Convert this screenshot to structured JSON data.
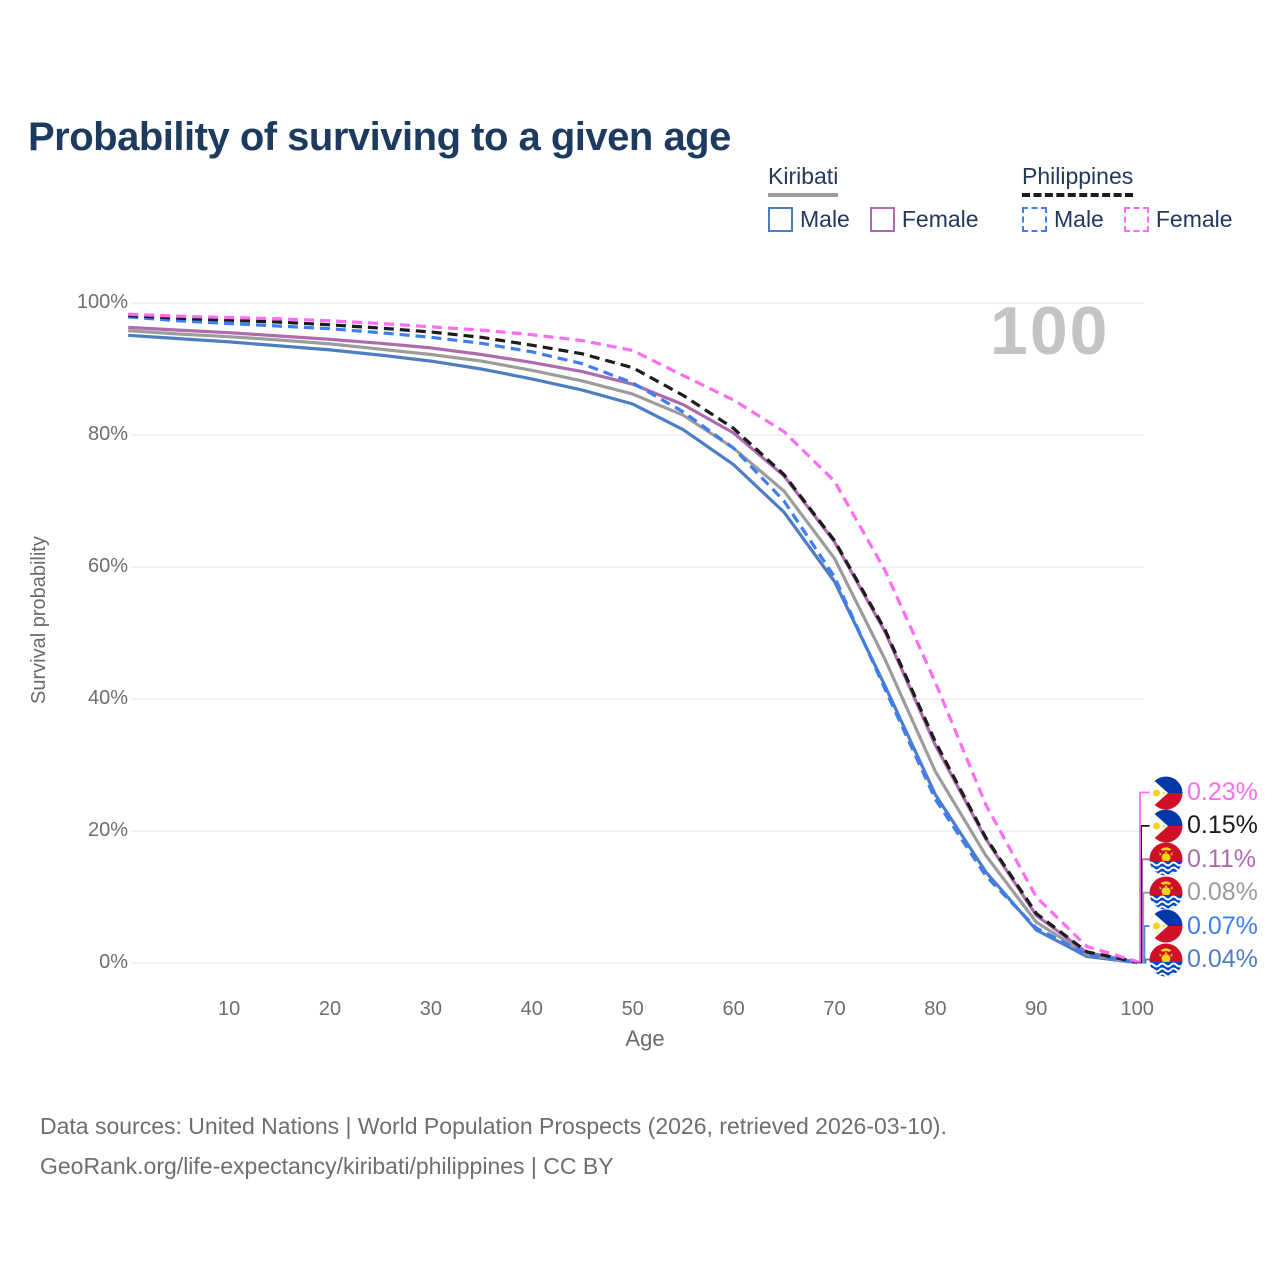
{
  "title": "Probability of surviving to a given age",
  "watermark": "100",
  "legend": {
    "groups": [
      {
        "label": "Kiribati",
        "line_style": "solid",
        "underline_color": "#9e9e9e",
        "items": [
          {
            "label": "Male",
            "color": "#4d7ec2",
            "dash": false
          },
          {
            "label": "Female",
            "color": "#ad6bae",
            "dash": false
          }
        ]
      },
      {
        "label": "Philippines",
        "line_style": "dashed",
        "underline_color": "#1c1c1c",
        "items": [
          {
            "label": "Male",
            "color": "#3e7ef2",
            "dash": true
          },
          {
            "label": "Female",
            "color": "#fb6df1",
            "dash": true
          }
        ]
      }
    ]
  },
  "chart_data": {
    "type": "line",
    "title": "Probability of surviving to a given age",
    "xlabel": "Age",
    "ylabel": "Survival probability",
    "xlim": [
      0,
      100
    ],
    "ylim": [
      0,
      100
    ],
    "grid": "horizontal",
    "x_ticks": [
      10,
      20,
      30,
      40,
      50,
      60,
      70,
      80,
      90,
      100
    ],
    "y_ticks": [
      {
        "label": "100%",
        "value": 100
      },
      {
        "label": "80%",
        "value": 80
      },
      {
        "label": "60%",
        "value": 60
      },
      {
        "label": "40%",
        "value": 40
      },
      {
        "label": "20%",
        "value": 20
      },
      {
        "label": "0%",
        "value": 0
      }
    ],
    "series": [
      {
        "id": "kiribati-male",
        "name": "Kiribati Male",
        "country": "Kiribati",
        "sex": "male",
        "color": "#4d7ec2",
        "dash": false,
        "end_label": "0.04%",
        "label_row": 5,
        "points": [
          [
            0,
            95.1
          ],
          [
            5,
            94.6
          ],
          [
            10,
            94.1
          ],
          [
            15,
            93.5
          ],
          [
            20,
            92.9
          ],
          [
            25,
            92.1
          ],
          [
            30,
            91.2
          ],
          [
            35,
            90.0
          ],
          [
            40,
            88.5
          ],
          [
            45,
            86.8
          ],
          [
            50,
            84.7
          ],
          [
            55,
            80.8
          ],
          [
            60,
            75.5
          ],
          [
            65,
            68.3
          ],
          [
            70,
            57.8
          ],
          [
            75,
            42.0
          ],
          [
            80,
            25.5
          ],
          [
            85,
            13.8
          ],
          [
            90,
            5.0
          ],
          [
            95,
            1.0
          ],
          [
            100,
            0.04
          ]
        ]
      },
      {
        "id": "kiribati-both",
        "name": "Kiribati",
        "country": "Kiribati",
        "sex": "both",
        "color": "#9c9c9c",
        "dash": false,
        "end_label": "0.08%",
        "label_row": 3,
        "points": [
          [
            0,
            95.8
          ],
          [
            5,
            95.3
          ],
          [
            10,
            94.9
          ],
          [
            15,
            94.4
          ],
          [
            20,
            93.8
          ],
          [
            25,
            93.0
          ],
          [
            30,
            92.2
          ],
          [
            35,
            91.2
          ],
          [
            40,
            89.8
          ],
          [
            45,
            88.2
          ],
          [
            50,
            86.2
          ],
          [
            55,
            83.0
          ],
          [
            60,
            78.0
          ],
          [
            65,
            71.5
          ],
          [
            70,
            61.3
          ],
          [
            75,
            46.0
          ],
          [
            80,
            29.0
          ],
          [
            85,
            16.3
          ],
          [
            90,
            6.2
          ],
          [
            95,
            1.3
          ],
          [
            100,
            0.08
          ]
        ]
      },
      {
        "id": "kiribati-female",
        "name": "Kiribati Female",
        "country": "Kiribati",
        "sex": "female",
        "color": "#ad6bae",
        "dash": false,
        "end_label": "0.11%",
        "label_row": 2,
        "points": [
          [
            0,
            96.3
          ],
          [
            5,
            95.9
          ],
          [
            10,
            95.5
          ],
          [
            15,
            95.0
          ],
          [
            20,
            94.5
          ],
          [
            25,
            93.9
          ],
          [
            30,
            93.2
          ],
          [
            35,
            92.2
          ],
          [
            40,
            91.0
          ],
          [
            45,
            89.6
          ],
          [
            50,
            87.7
          ],
          [
            55,
            84.6
          ],
          [
            60,
            80.3
          ],
          [
            65,
            73.8
          ],
          [
            70,
            63.8
          ],
          [
            75,
            50.2
          ],
          [
            80,
            33.0
          ],
          [
            85,
            18.8
          ],
          [
            90,
            7.2
          ],
          [
            95,
            1.6
          ],
          [
            100,
            0.11
          ]
        ]
      },
      {
        "id": "philippines-male",
        "name": "Philippines Male",
        "country": "Philippines",
        "sex": "male",
        "color": "#3e7ef2",
        "dash": true,
        "end_label": "0.07%",
        "label_row": 4,
        "points": [
          [
            0,
            97.9
          ],
          [
            5,
            97.3
          ],
          [
            10,
            96.9
          ],
          [
            15,
            96.5
          ],
          [
            20,
            96.1
          ],
          [
            25,
            95.5
          ],
          [
            30,
            94.8
          ],
          [
            35,
            93.9
          ],
          [
            40,
            92.6
          ],
          [
            45,
            90.8
          ],
          [
            50,
            87.9
          ],
          [
            55,
            83.5
          ],
          [
            60,
            78.0
          ],
          [
            65,
            70.0
          ],
          [
            70,
            58.5
          ],
          [
            75,
            41.5
          ],
          [
            80,
            24.8
          ],
          [
            85,
            13.2
          ],
          [
            90,
            5.3
          ],
          [
            95,
            1.3
          ],
          [
            100,
            0.07
          ]
        ]
      },
      {
        "id": "philippines-both",
        "name": "Philippines",
        "country": "Philippines",
        "sex": "both",
        "color": "#1c1c1c",
        "dash": true,
        "end_label": "0.15%",
        "label_row": 1,
        "points": [
          [
            0,
            98.1
          ],
          [
            5,
            97.7
          ],
          [
            10,
            97.4
          ],
          [
            15,
            97.1
          ],
          [
            20,
            96.7
          ],
          [
            25,
            96.2
          ],
          [
            30,
            95.6
          ],
          [
            35,
            94.8
          ],
          [
            40,
            93.6
          ],
          [
            45,
            92.3
          ],
          [
            50,
            90.2
          ],
          [
            55,
            86.0
          ],
          [
            60,
            81.0
          ],
          [
            65,
            74.0
          ],
          [
            70,
            64.0
          ],
          [
            75,
            50.5
          ],
          [
            80,
            33.5
          ],
          [
            85,
            19.0
          ],
          [
            90,
            7.5
          ],
          [
            95,
            1.7
          ],
          [
            100,
            0.15
          ]
        ]
      },
      {
        "id": "philippines-female",
        "name": "Philippines Female",
        "country": "Philippines",
        "sex": "female",
        "color": "#fb6df1",
        "dash": true,
        "end_label": "0.23%",
        "label_row": 0,
        "points": [
          [
            0,
            98.3
          ],
          [
            5,
            98.0
          ],
          [
            10,
            97.8
          ],
          [
            15,
            97.6
          ],
          [
            20,
            97.3
          ],
          [
            25,
            96.9
          ],
          [
            30,
            96.4
          ],
          [
            35,
            95.9
          ],
          [
            40,
            95.2
          ],
          [
            45,
            94.3
          ],
          [
            50,
            92.8
          ],
          [
            55,
            89.0
          ],
          [
            60,
            85.3
          ],
          [
            65,
            80.5
          ],
          [
            70,
            73.0
          ],
          [
            75,
            59.5
          ],
          [
            80,
            42.5
          ],
          [
            85,
            24.0
          ],
          [
            90,
            10.0
          ],
          [
            95,
            2.5
          ],
          [
            100,
            0.23
          ]
        ]
      }
    ],
    "hover_age_watermark": "100"
  },
  "flags": {
    "philippines": {
      "blue": "#0038a8",
      "red": "#ce1126",
      "yellow": "#fcd116",
      "white": "#ffffff"
    },
    "kiribati": {
      "red": "#ce1126",
      "blue": "#0047c8",
      "yellow": "#fcd116",
      "white": "#ffffff"
    }
  },
  "footer": {
    "line1": "Data sources: United Nations | World Population Prospects (2026, retrieved 2026-03-10).",
    "line2": "GeoRank.org/life-expectancy/kiribati/philippines | CC BY"
  }
}
